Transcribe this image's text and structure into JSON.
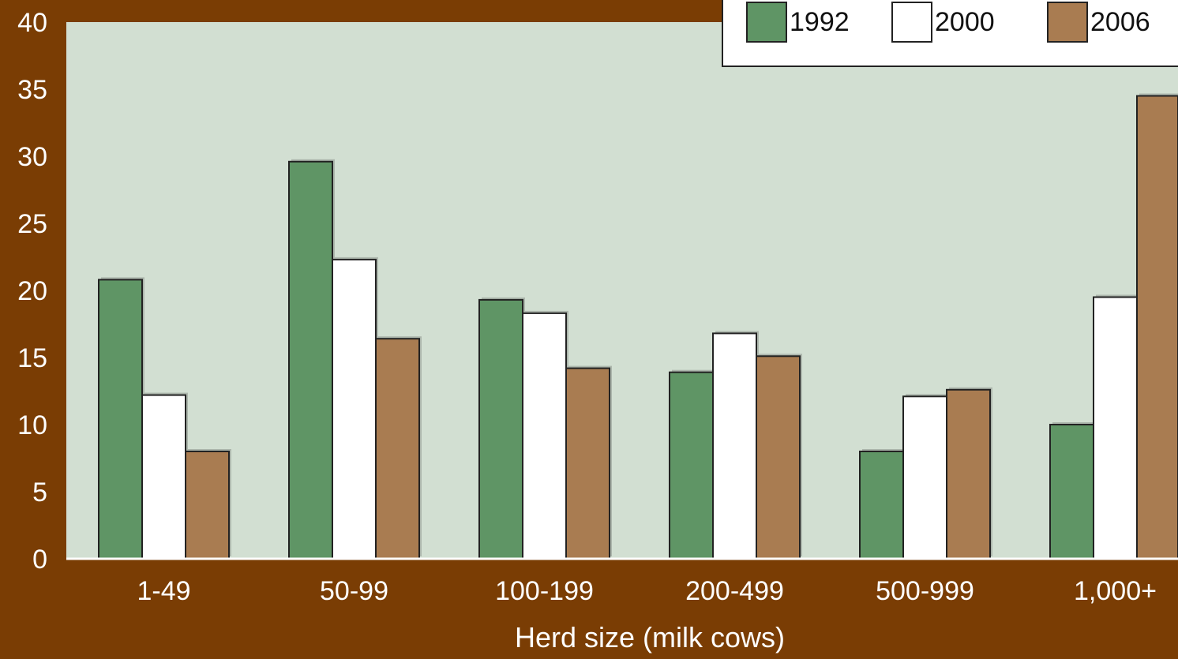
{
  "chart_data": {
    "type": "bar",
    "categories": [
      "1-49",
      "50-99",
      "100-199",
      "200-499",
      "500-999",
      "1,000+"
    ],
    "series": [
      {
        "name": "1992",
        "values": [
          20.8,
          29.6,
          19.3,
          13.9,
          8.0,
          10.0
        ],
        "color": "#5f9565"
      },
      {
        "name": "2000",
        "values": [
          12.2,
          22.3,
          18.3,
          16.8,
          12.1,
          19.5
        ],
        "color": "#ffffff"
      },
      {
        "name": "2006",
        "values": [
          8.0,
          16.4,
          14.2,
          15.1,
          12.6,
          34.5
        ],
        "color": "#a97c51"
      }
    ],
    "xlabel": "Herd size (milk cows)",
    "ylabel": "",
    "ylim": [
      0,
      40
    ],
    "yticks": [
      0,
      5,
      10,
      15,
      20,
      25,
      30,
      35,
      40
    ],
    "grid": false,
    "legend_position": "top-right",
    "colors": {
      "background": "#7a3d04",
      "plot_area": "#d2dfd2",
      "text": "#ffffff",
      "bar_outline": "#222222"
    }
  }
}
